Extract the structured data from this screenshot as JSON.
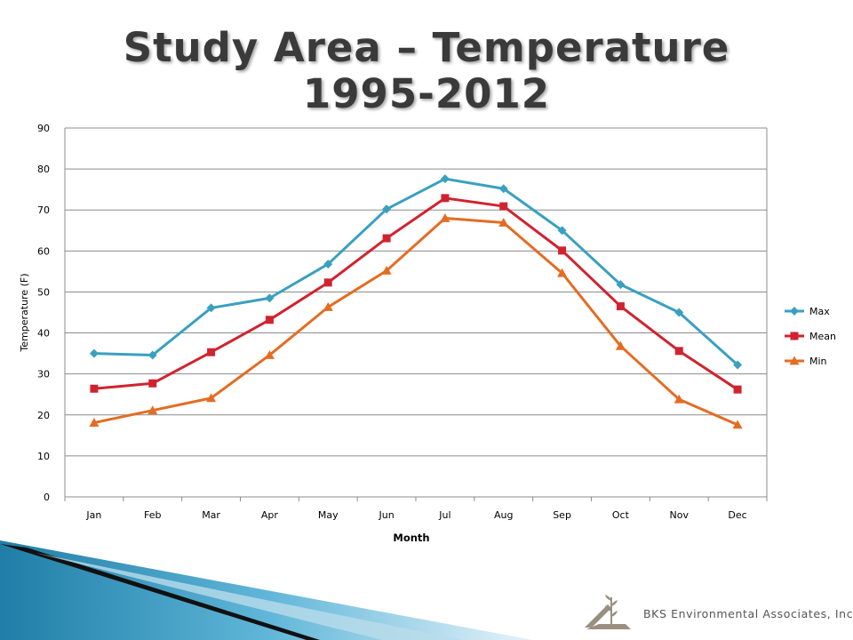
{
  "slide": {
    "title_line1": "Study Area – Temperature",
    "title_line2": "1995-2012",
    "footer": "BKS Environmental Associates, Inc."
  },
  "colors": {
    "max": "#3aa0bf",
    "mean": "#d1232f",
    "min": "#e46c22",
    "grid": "#8c8c8c",
    "deco_blue": "#2f8fb6"
  },
  "chart_data": {
    "type": "line",
    "title": "",
    "xlabel": "Month",
    "ylabel": "Temperature (F)",
    "ylim": [
      0,
      90
    ],
    "yticks": [
      0,
      10,
      20,
      30,
      40,
      50,
      60,
      70,
      80,
      90
    ],
    "grid": true,
    "legend_position": "right",
    "categories": [
      "Jan",
      "Feb",
      "Mar",
      "Apr",
      "May",
      "Jun",
      "Jul",
      "Aug",
      "Sep",
      "Oct",
      "Nov",
      "Dec"
    ],
    "series": [
      {
        "name": "Max",
        "marker": "diamond",
        "color": "#3aa0bf",
        "values": [
          35.0,
          34.6,
          46.1,
          48.5,
          56.8,
          70.2,
          77.6,
          75.2,
          65.0,
          51.8,
          45.0,
          32.2
        ]
      },
      {
        "name": "Mean",
        "marker": "square",
        "color": "#d1232f",
        "values": [
          26.4,
          27.7,
          35.3,
          43.2,
          52.3,
          63.1,
          72.9,
          70.9,
          60.1,
          46.5,
          35.6,
          26.2
        ]
      },
      {
        "name": "Min",
        "marker": "triangle",
        "color": "#e46c22",
        "values": [
          18.1,
          21.1,
          24.1,
          34.6,
          46.3,
          55.2,
          68.0,
          66.9,
          54.6,
          36.8,
          23.8,
          17.6
        ]
      }
    ]
  }
}
